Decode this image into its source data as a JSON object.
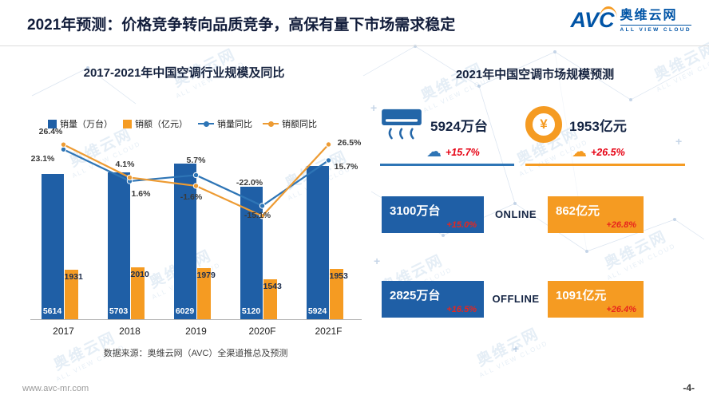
{
  "header": {
    "title": "2021年预测：价格竞争转向品质竞争，高保有量下市场需求稳定",
    "logo": {
      "abbr": "AVC",
      "name": "奥维云网",
      "tagline": "ALL VIEW CLOUD"
    }
  },
  "colors": {
    "bar_blue": "#1F5FA6",
    "bar_orange": "#F59B22",
    "line_blue": "#2E75B6",
    "line_orange": "#ED9B33",
    "growth_red": "#E60012",
    "navy": "#152544",
    "logo_blue": "#0054A6"
  },
  "chart_data": {
    "type": "bar",
    "title": "2017-2021年中国空调行业规模及同比",
    "categories": [
      "2017",
      "2018",
      "2019",
      "2020F",
      "2021F"
    ],
    "series": [
      {
        "name": "销量（万台）",
        "kind": "bar",
        "color": "#1F5FA6",
        "values": [
          5614,
          5703,
          6029,
          5120,
          5924
        ]
      },
      {
        "name": "销额（亿元）",
        "kind": "bar",
        "color": "#F59B22",
        "values": [
          1931,
          2010,
          1979,
          1543,
          1953
        ]
      },
      {
        "name": "销量同比",
        "kind": "line",
        "color": "#2E75B6",
        "values": [
          23.1,
          1.6,
          5.7,
          -15.1,
          15.7
        ],
        "labels": [
          "23.1%",
          "1.6%",
          "5.7%",
          "-15.1%",
          "15.7%"
        ]
      },
      {
        "name": "销额同比",
        "kind": "line",
        "color": "#ED9B33",
        "values": [
          26.4,
          4.1,
          -1.6,
          -22.0,
          26.5
        ],
        "labels": [
          "26.4%",
          "4.1%",
          "-1.6%",
          "-22.0%",
          "26.5%"
        ]
      }
    ],
    "bar_ylim": [
      0,
      6500
    ],
    "line_ylim_pct": [
      -30,
      30
    ],
    "legend_position": "top",
    "grid": "off",
    "source": "数据来源：奥维云网（AVC）全渠道推总及预测"
  },
  "right_panel": {
    "title": "2021年中国空调市场规模预测",
    "totals": {
      "volume": {
        "value": "5924万台",
        "growth": "+15.7%"
      },
      "amount": {
        "value": "1953亿元",
        "growth": "+26.5%"
      }
    },
    "rows": [
      {
        "channel": "ONLINE",
        "volume": "3100万台",
        "volume_growth": "+15.0%",
        "amount": "862亿元",
        "amount_growth": "+26.8%"
      },
      {
        "channel": "OFFLINE",
        "volume": "2825万台",
        "volume_growth": "+16.5%",
        "amount": "1091亿元",
        "amount_growth": "+26.4%"
      }
    ]
  },
  "footer": {
    "url": "www.avc-mr.com",
    "page": "-4-"
  },
  "watermark": {
    "line1": "奥维云网",
    "line2": "ALL VIEW CLOUD"
  }
}
